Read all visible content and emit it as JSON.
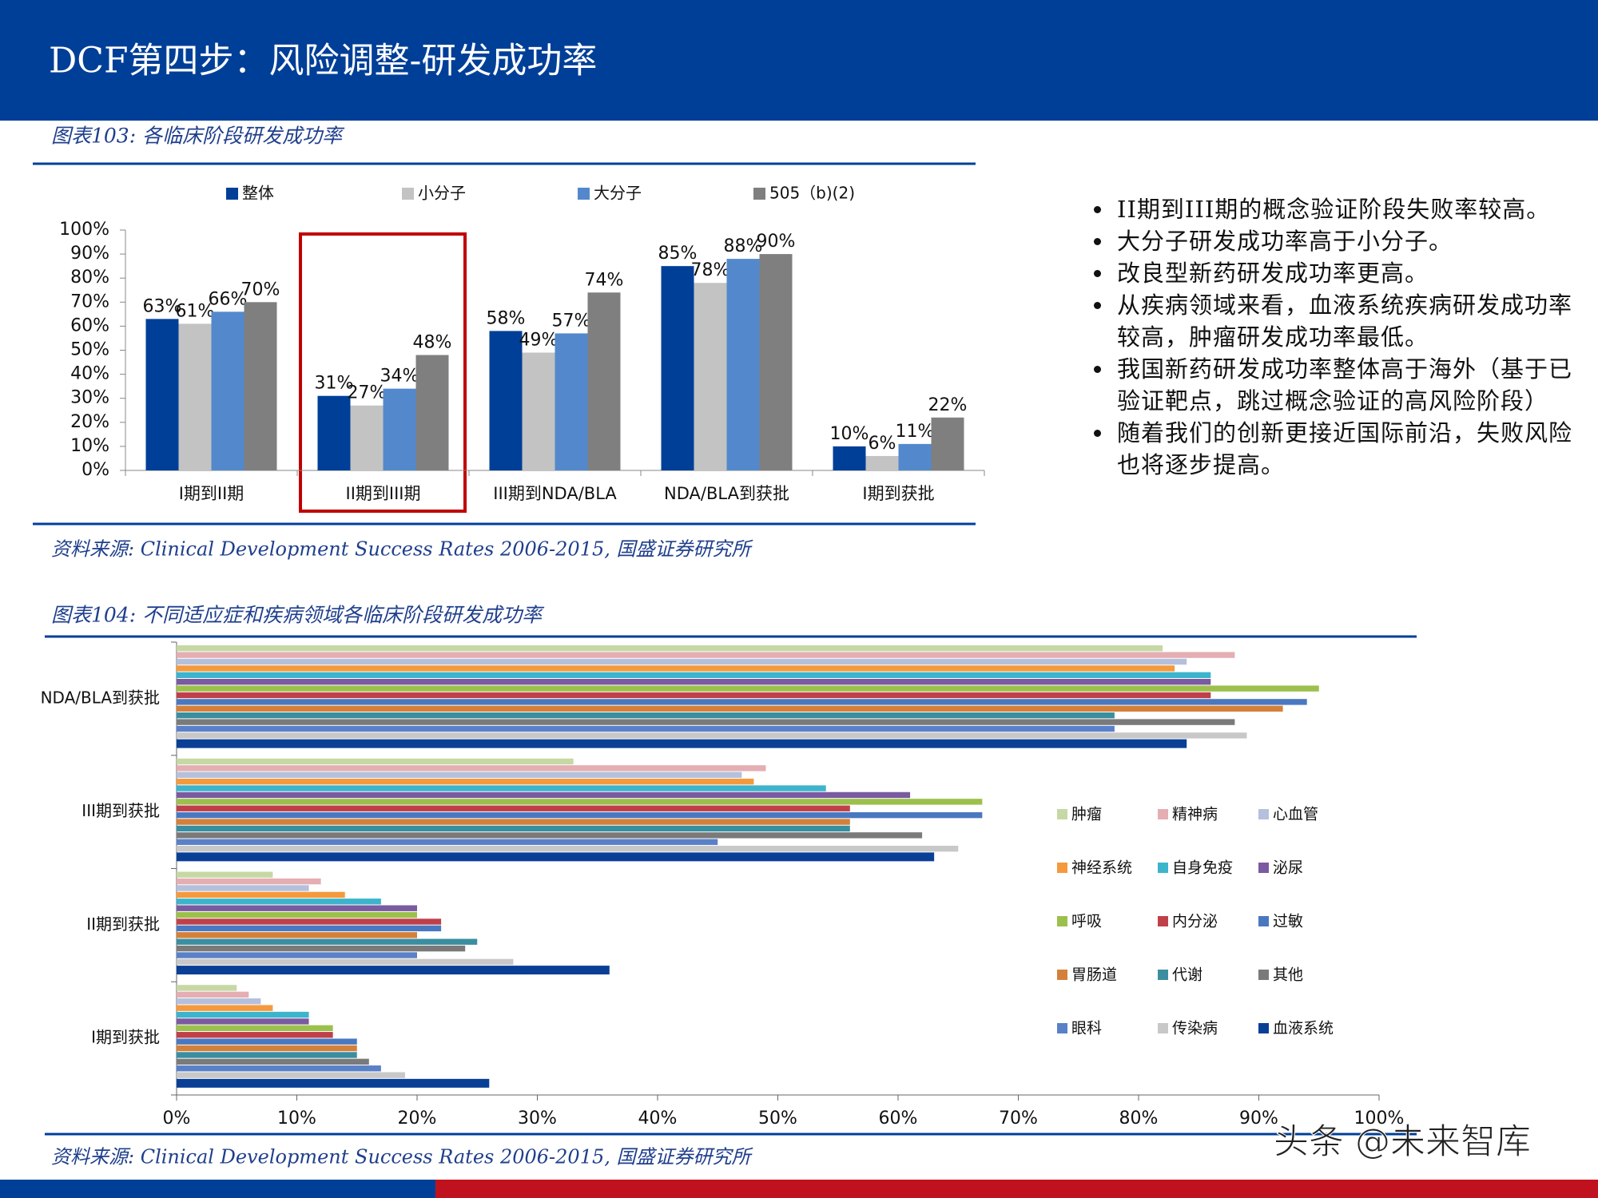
{
  "header": {
    "title": "DCF第四步：风险调整-研发成功率"
  },
  "chart_data": [
    {
      "type": "bar",
      "title": "图表103: 各临床阶段研发成功率",
      "source": "资料来源: Clinical Development Success Rates 2006-2015, 国盛证券研究所",
      "legend": "top",
      "categories": [
        "I期到II期",
        "II期到III期",
        "III期到NDA/BLA",
        "NDA/BLA到获批",
        "I期到获批"
      ],
      "series": [
        {
          "name": "整体",
          "color": "#003f98",
          "values": [
            63,
            31,
            58,
            85,
            10
          ],
          "value_labels": [
            "63%",
            "31%",
            "58%",
            "85%",
            "10%"
          ]
        },
        {
          "name": "小分子",
          "color": "#c3c3c3",
          "values": [
            61,
            27,
            49,
            78,
            6
          ],
          "value_labels": [
            "61%",
            "27%",
            "49%",
            "78%",
            "6%"
          ]
        },
        {
          "name": "大分子",
          "color": "#5389cc",
          "values": [
            66,
            34,
            57,
            88,
            11
          ],
          "value_labels": [
            "66%",
            "34%",
            "57%",
            "88%",
            "11%"
          ]
        },
        {
          "name": "505（b)(2)",
          "color": "#7f7f7f",
          "values": [
            70,
            48,
            74,
            90,
            22
          ],
          "value_labels": [
            "70%",
            "48%",
            "74%",
            "90%",
            "22%"
          ]
        }
      ],
      "ylim": [
        0,
        100
      ],
      "yticks": [
        {
          "value": 0,
          "label": "0%"
        },
        {
          "value": 10,
          "label": "10%"
        },
        {
          "value": 20,
          "label": "20%"
        },
        {
          "value": 30,
          "label": "30%"
        },
        {
          "value": 40,
          "label": "40%"
        },
        {
          "value": 50,
          "label": "50%"
        },
        {
          "value": 60,
          "label": "60%"
        },
        {
          "value": 70,
          "label": "70%"
        },
        {
          "value": 80,
          "label": "80%"
        },
        {
          "value": 90,
          "label": "90%"
        },
        {
          "value": 100,
          "label": "100%"
        }
      ]
    },
    {
      "type": "barh",
      "title": "图表104: 不同适应症和疾病领域各临床阶段研发成功率",
      "source": "资料来源: Clinical Development Success Rates 2006-2015, 国盛证券研究所",
      "legend": "right",
      "categories": [
        "I期到获批",
        "II期到获批",
        "III期到获批",
        "NDA/BLA到获批"
      ],
      "series": [
        {
          "name": "肿瘤",
          "color": "#c6d8a4",
          "values": [
            5,
            8,
            33,
            82
          ]
        },
        {
          "name": "精神病",
          "color": "#e4aeb2",
          "values": [
            6,
            12,
            49,
            88
          ]
        },
        {
          "name": "心血管",
          "color": "#b4c0dc",
          "values": [
            7,
            11,
            47,
            84
          ]
        },
        {
          "name": "神经系统",
          "color": "#f59a3c",
          "values": [
            8,
            14,
            48,
            83
          ]
        },
        {
          "name": "自身免疫",
          "color": "#3cb4cc",
          "values": [
            11,
            17,
            54,
            86
          ]
        },
        {
          "name": "泌尿",
          "color": "#7a5aa0",
          "values": [
            11,
            20,
            61,
            86
          ]
        },
        {
          "name": "呼吸",
          "color": "#9cc04c",
          "values": [
            13,
            20,
            67,
            95
          ]
        },
        {
          "name": "内分泌",
          "color": "#c0404a",
          "values": [
            13,
            22,
            56,
            86
          ]
        },
        {
          "name": "过敏",
          "color": "#4a78c0",
          "values": [
            15,
            22,
            67,
            94
          ]
        },
        {
          "name": "胃肠道",
          "color": "#d4803a",
          "values": [
            15,
            20,
            56,
            92
          ]
        },
        {
          "name": "代谢",
          "color": "#3a8ea0",
          "values": [
            15,
            25,
            56,
            78
          ]
        },
        {
          "name": "其他",
          "color": "#7a7a7a",
          "values": [
            16,
            24,
            62,
            88
          ]
        },
        {
          "name": "眼科",
          "color": "#5a80c8",
          "values": [
            17,
            20,
            45,
            78
          ]
        },
        {
          "name": "传染病",
          "color": "#c8c8c8",
          "values": [
            19,
            28,
            65,
            89
          ]
        },
        {
          "name": "血液系统",
          "color": "#0a3f96",
          "values": [
            26,
            36,
            63,
            84
          ]
        }
      ],
      "xlim": [
        0,
        100
      ],
      "xticks": [
        {
          "value": 0,
          "label": "0%"
        },
        {
          "value": 10,
          "label": "10%"
        },
        {
          "value": 20,
          "label": "20%"
        },
        {
          "value": 30,
          "label": "30%"
        },
        {
          "value": 40,
          "label": "40%"
        },
        {
          "value": 50,
          "label": "50%"
        },
        {
          "value": 60,
          "label": "60%"
        },
        {
          "value": 70,
          "label": "70%"
        },
        {
          "value": 80,
          "label": "80%"
        },
        {
          "value": 90,
          "label": "90%"
        },
        {
          "value": 100,
          "label": "100%"
        }
      ]
    }
  ],
  "bullets": [
    "II期到III期的概念验证阶段失败率较高。",
    "大分子研发成功率高于小分子。",
    "改良型新药研发成功率更高。",
    "从疾病领域来看，血液系统疾病研发成功率较高，肿瘤研发成功率最低。",
    "我国新药研发成功率整体高于海外（基于已验证靶点，跳过概念验证的高风险阶段）",
    "随着我们的创新更接近国际前沿，失败风险也将逐步提高。"
  ],
  "watermark": "头条 @未来智库"
}
